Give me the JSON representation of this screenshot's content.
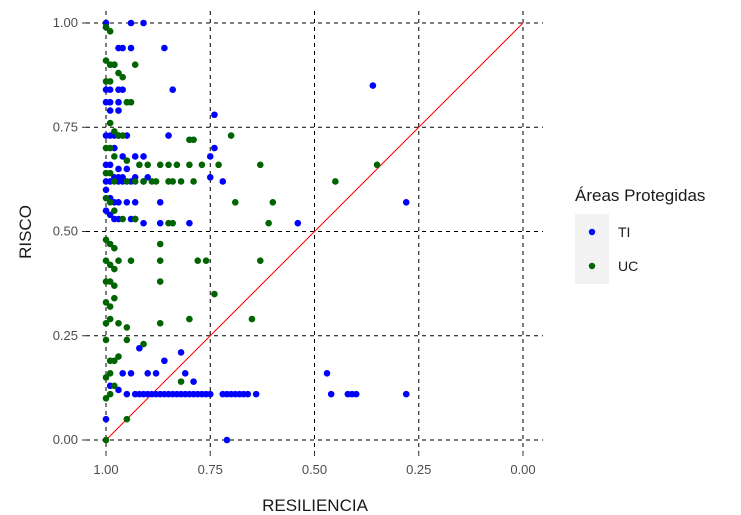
{
  "chart_data": {
    "type": "scatter",
    "xlabel": "RESILIENCIA",
    "ylabel": "RISCO",
    "xlim": [
      1.0,
      0.0
    ],
    "ylim": [
      0.0,
      1.0
    ],
    "x_reversed": true,
    "x_ticks": [
      "1.00",
      "0.75",
      "0.50",
      "0.25",
      "0.00"
    ],
    "y_ticks": [
      "0.00",
      "0.25",
      "0.50",
      "0.75",
      "1.00"
    ],
    "grid": "dashed black",
    "reference_line": {
      "from": [
        1.0,
        0.0
      ],
      "to": [
        0.0,
        1.0
      ],
      "color": "#ff0000"
    },
    "legend": {
      "title": "Áreas Protegidas",
      "position": "right",
      "items": [
        {
          "label": "TI",
          "color": "#0000ff"
        },
        {
          "label": "UC",
          "color": "#006400"
        }
      ]
    },
    "series": [
      {
        "name": "TI",
        "color": "#0000ff",
        "points": [
          [
            1.0,
            1.0
          ],
          [
            1.0,
            0.99
          ],
          [
            0.94,
            1.0
          ],
          [
            0.91,
            1.0
          ],
          [
            0.97,
            0.94
          ],
          [
            0.96,
            0.94
          ],
          [
            0.94,
            0.94
          ],
          [
            0.86,
            0.94
          ],
          [
            0.99,
            0.9
          ],
          [
            0.98,
            0.9
          ],
          [
            1.0,
            0.84
          ],
          [
            0.99,
            0.84
          ],
          [
            0.97,
            0.84
          ],
          [
            0.96,
            0.84
          ],
          [
            0.84,
            0.84
          ],
          [
            1.0,
            0.81
          ],
          [
            0.99,
            0.81
          ],
          [
            0.97,
            0.81
          ],
          [
            0.99,
            0.79
          ],
          [
            0.97,
            0.79
          ],
          [
            0.74,
            0.78
          ],
          [
            0.36,
            0.85
          ],
          [
            1.0,
            0.73
          ],
          [
            0.99,
            0.73
          ],
          [
            0.98,
            0.73
          ],
          [
            0.97,
            0.73
          ],
          [
            0.95,
            0.73
          ],
          [
            0.85,
            0.73
          ],
          [
            0.74,
            0.7
          ],
          [
            0.98,
            0.7
          ],
          [
            0.96,
            0.68
          ],
          [
            0.93,
            0.68
          ],
          [
            0.91,
            0.68
          ],
          [
            0.75,
            0.68
          ],
          [
            1.0,
            0.66
          ],
          [
            0.99,
            0.66
          ],
          [
            0.97,
            0.65
          ],
          [
            0.95,
            0.65
          ],
          [
            0.98,
            0.63
          ],
          [
            0.97,
            0.63
          ],
          [
            0.96,
            0.63
          ],
          [
            0.93,
            0.63
          ],
          [
            0.9,
            0.63
          ],
          [
            0.75,
            0.63
          ],
          [
            1.0,
            0.62
          ],
          [
            0.99,
            0.62
          ],
          [
            0.97,
            0.62
          ],
          [
            0.96,
            0.62
          ],
          [
            0.94,
            0.62
          ],
          [
            0.91,
            0.62
          ],
          [
            0.72,
            0.62
          ],
          [
            1.0,
            0.6
          ],
          [
            0.99,
            0.58
          ],
          [
            0.98,
            0.57
          ],
          [
            0.97,
            0.57
          ],
          [
            0.95,
            0.57
          ],
          [
            0.93,
            0.57
          ],
          [
            0.87,
            0.57
          ],
          [
            1.0,
            0.55
          ],
          [
            0.99,
            0.54
          ],
          [
            0.98,
            0.53
          ],
          [
            0.97,
            0.53
          ],
          [
            0.94,
            0.53
          ],
          [
            0.93,
            0.53
          ],
          [
            0.91,
            0.52
          ],
          [
            0.87,
            0.52
          ],
          [
            0.8,
            0.52
          ],
          [
            0.54,
            0.52
          ],
          [
            0.28,
            0.57
          ],
          [
            0.92,
            0.22
          ],
          [
            0.86,
            0.19
          ],
          [
            0.82,
            0.21
          ],
          [
            0.96,
            0.16
          ],
          [
            0.94,
            0.16
          ],
          [
            0.9,
            0.16
          ],
          [
            0.88,
            0.16
          ],
          [
            0.81,
            0.16
          ],
          [
            0.79,
            0.14
          ],
          [
            0.99,
            0.13
          ],
          [
            0.97,
            0.12
          ],
          [
            0.95,
            0.11
          ],
          [
            0.93,
            0.11
          ],
          [
            0.92,
            0.11
          ],
          [
            0.91,
            0.11
          ],
          [
            0.9,
            0.11
          ],
          [
            0.89,
            0.11
          ],
          [
            0.88,
            0.11
          ],
          [
            0.87,
            0.11
          ],
          [
            0.86,
            0.11
          ],
          [
            0.85,
            0.11
          ],
          [
            0.84,
            0.11
          ],
          [
            0.83,
            0.11
          ],
          [
            0.82,
            0.11
          ],
          [
            0.81,
            0.11
          ],
          [
            0.8,
            0.11
          ],
          [
            0.79,
            0.11
          ],
          [
            0.78,
            0.11
          ],
          [
            0.77,
            0.11
          ],
          [
            0.76,
            0.11
          ],
          [
            0.75,
            0.11
          ],
          [
            0.72,
            0.11
          ],
          [
            0.71,
            0.11
          ],
          [
            0.7,
            0.11
          ],
          [
            0.69,
            0.11
          ],
          [
            0.68,
            0.11
          ],
          [
            0.67,
            0.11
          ],
          [
            0.66,
            0.11
          ],
          [
            0.64,
            0.11
          ],
          [
            0.47,
            0.16
          ],
          [
            0.46,
            0.11
          ],
          [
            0.42,
            0.11
          ],
          [
            0.41,
            0.11
          ],
          [
            0.4,
            0.11
          ],
          [
            0.28,
            0.11
          ],
          [
            1.0,
            0.05
          ],
          [
            0.71,
            0.0
          ]
        ]
      },
      {
        "name": "UC",
        "color": "#006400",
        "points": [
          [
            1.0,
            0.99
          ],
          [
            0.99,
            0.98
          ],
          [
            1.0,
            0.91
          ],
          [
            0.99,
            0.9
          ],
          [
            0.98,
            0.9
          ],
          [
            0.97,
            0.88
          ],
          [
            0.96,
            0.87
          ],
          [
            0.93,
            0.9
          ],
          [
            1.0,
            0.86
          ],
          [
            0.99,
            0.86
          ],
          [
            0.95,
            0.81
          ],
          [
            0.94,
            0.81
          ],
          [
            0.99,
            0.76
          ],
          [
            0.98,
            0.74
          ],
          [
            0.97,
            0.73
          ],
          [
            0.96,
            0.73
          ],
          [
            0.8,
            0.72
          ],
          [
            0.79,
            0.72
          ],
          [
            0.7,
            0.73
          ],
          [
            1.0,
            0.7
          ],
          [
            0.99,
            0.7
          ],
          [
            0.98,
            0.68
          ],
          [
            0.95,
            0.67
          ],
          [
            0.92,
            0.66
          ],
          [
            0.9,
            0.66
          ],
          [
            0.87,
            0.66
          ],
          [
            0.85,
            0.66
          ],
          [
            0.83,
            0.66
          ],
          [
            0.8,
            0.66
          ],
          [
            0.77,
            0.66
          ],
          [
            0.73,
            0.66
          ],
          [
            0.63,
            0.66
          ],
          [
            0.35,
            0.66
          ],
          [
            1.0,
            0.64
          ],
          [
            0.99,
            0.64
          ],
          [
            0.98,
            0.62
          ],
          [
            0.95,
            0.62
          ],
          [
            0.93,
            0.62
          ],
          [
            0.91,
            0.62
          ],
          [
            0.89,
            0.62
          ],
          [
            0.88,
            0.62
          ],
          [
            0.85,
            0.62
          ],
          [
            0.84,
            0.62
          ],
          [
            0.82,
            0.62
          ],
          [
            0.79,
            0.62
          ],
          [
            0.45,
            0.62
          ],
          [
            1.0,
            0.58
          ],
          [
            0.99,
            0.57
          ],
          [
            0.69,
            0.57
          ],
          [
            0.6,
            0.57
          ],
          [
            0.98,
            0.55
          ],
          [
            0.96,
            0.53
          ],
          [
            0.93,
            0.53
          ],
          [
            0.85,
            0.52
          ],
          [
            0.84,
            0.52
          ],
          [
            0.61,
            0.52
          ],
          [
            0.87,
            0.47
          ],
          [
            1.0,
            0.48
          ],
          [
            0.99,
            0.47
          ],
          [
            0.98,
            0.46
          ],
          [
            1.0,
            0.43
          ],
          [
            0.99,
            0.42
          ],
          [
            0.98,
            0.41
          ],
          [
            0.97,
            0.43
          ],
          [
            0.94,
            0.43
          ],
          [
            0.87,
            0.43
          ],
          [
            0.78,
            0.43
          ],
          [
            0.76,
            0.43
          ],
          [
            0.63,
            0.43
          ],
          [
            1.0,
            0.38
          ],
          [
            0.99,
            0.38
          ],
          [
            0.98,
            0.37
          ],
          [
            0.87,
            0.38
          ],
          [
            0.74,
            0.35
          ],
          [
            1.0,
            0.33
          ],
          [
            0.99,
            0.32
          ],
          [
            0.98,
            0.34
          ],
          [
            1.0,
            0.28
          ],
          [
            0.99,
            0.29
          ],
          [
            0.97,
            0.28
          ],
          [
            0.95,
            0.27
          ],
          [
            0.87,
            0.28
          ],
          [
            0.8,
            0.29
          ],
          [
            0.65,
            0.29
          ],
          [
            1.0,
            0.24
          ],
          [
            0.95,
            0.24
          ],
          [
            0.91,
            0.23
          ],
          [
            0.99,
            0.19
          ],
          [
            0.98,
            0.19
          ],
          [
            0.97,
            0.2
          ],
          [
            1.0,
            0.15
          ],
          [
            0.99,
            0.16
          ],
          [
            0.98,
            0.13
          ],
          [
            1.0,
            0.1
          ],
          [
            0.99,
            0.11
          ],
          [
            0.82,
            0.14
          ],
          [
            1.0,
            0.0
          ],
          [
            0.95,
            0.05
          ]
        ]
      }
    ]
  }
}
